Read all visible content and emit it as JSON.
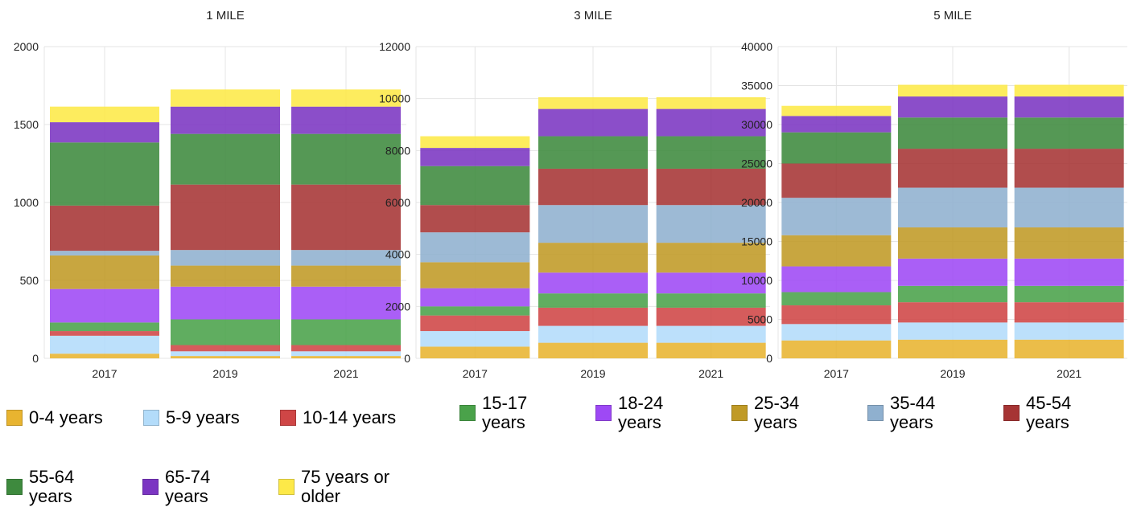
{
  "chart_data": [
    {
      "type": "bar",
      "stacked": true,
      "title": "1 MILE",
      "categories": [
        "2017",
        "2019",
        "2021"
      ],
      "ylim": [
        0,
        2000
      ],
      "yticks": [
        "0",
        "500",
        "1000",
        "1500",
        "2000"
      ],
      "grid": true,
      "series": [
        {
          "name": "0-4 years",
          "values": [
            30,
            15,
            15
          ]
        },
        {
          "name": "5-9 years",
          "values": [
            115,
            30,
            30
          ]
        },
        {
          "name": "10-14 years",
          "values": [
            30,
            40,
            40
          ]
        },
        {
          "name": "15-17 years",
          "values": [
            55,
            165,
            165
          ]
        },
        {
          "name": "18-24 years",
          "values": [
            215,
            210,
            210
          ]
        },
        {
          "name": "25-34 years",
          "values": [
            215,
            135,
            135
          ]
        },
        {
          "name": "35-44 years",
          "values": [
            30,
            100,
            100
          ]
        },
        {
          "name": "45-54 years",
          "values": [
            290,
            420,
            420
          ]
        },
        {
          "name": "55-64 years",
          "values": [
            405,
            325,
            325
          ]
        },
        {
          "name": "65-74 years",
          "values": [
            130,
            175,
            175
          ]
        },
        {
          "name": "75 years or older",
          "values": [
            100,
            110,
            110
          ]
        }
      ]
    },
    {
      "type": "bar",
      "stacked": true,
      "title": "3 MILE",
      "categories": [
        "2017",
        "2019",
        "2021"
      ],
      "ylim": [
        0,
        12000
      ],
      "yticks": [
        "0",
        "2000",
        "4000",
        "6000",
        "8000",
        "10000",
        "12000"
      ],
      "grid": true,
      "series": [
        {
          "name": "0-4 years",
          "values": [
            450,
            600,
            600
          ]
        },
        {
          "name": "5-9 years",
          "values": [
            600,
            650,
            650
          ]
        },
        {
          "name": "10-14 years",
          "values": [
            600,
            700,
            700
          ]
        },
        {
          "name": "15-17 years",
          "values": [
            350,
            550,
            550
          ]
        },
        {
          "name": "18-24 years",
          "values": [
            700,
            800,
            800
          ]
        },
        {
          "name": "25-34 years",
          "values": [
            1000,
            1150,
            1150
          ]
        },
        {
          "name": "35-44 years",
          "values": [
            1150,
            1450,
            1450
          ]
        },
        {
          "name": "45-54 years",
          "values": [
            1050,
            1400,
            1400
          ]
        },
        {
          "name": "55-64 years",
          "values": [
            1500,
            1250,
            1250
          ]
        },
        {
          "name": "65-74 years",
          "values": [
            700,
            1050,
            1050
          ]
        },
        {
          "name": "75 years or older",
          "values": [
            450,
            450,
            450
          ]
        }
      ]
    },
    {
      "type": "bar",
      "stacked": true,
      "title": "5 MILE",
      "categories": [
        "2017",
        "2019",
        "2021"
      ],
      "ylim": [
        0,
        40000
      ],
      "yticks": [
        "0",
        "5000",
        "10000",
        "15000",
        "20000",
        "25000",
        "30000",
        "35000",
        "40000"
      ],
      "grid": true,
      "series": [
        {
          "name": "0-4 years",
          "values": [
            2300,
            2400,
            2400
          ]
        },
        {
          "name": "5-9 years",
          "values": [
            2100,
            2200,
            2200
          ]
        },
        {
          "name": "10-14 years",
          "values": [
            2400,
            2600,
            2600
          ]
        },
        {
          "name": "15-17 years",
          "values": [
            1700,
            2100,
            2100
          ]
        },
        {
          "name": "18-24 years",
          "values": [
            3300,
            3500,
            3500
          ]
        },
        {
          "name": "25-34 years",
          "values": [
            4000,
            4000,
            4000
          ]
        },
        {
          "name": "35-44 years",
          "values": [
            4800,
            5100,
            5100
          ]
        },
        {
          "name": "45-54 years",
          "values": [
            4400,
            5000,
            5000
          ]
        },
        {
          "name": "55-64 years",
          "values": [
            4000,
            4000,
            4000
          ]
        },
        {
          "name": "65-74 years",
          "values": [
            2100,
            2700,
            2700
          ]
        },
        {
          "name": "75 years or older",
          "values": [
            1300,
            1500,
            1500
          ]
        }
      ]
    }
  ],
  "colors": {
    "0-4 years": "#e8b430",
    "5-9 years": "#b3dcfa",
    "10-14 years": "#cf4646",
    "15-17 years": "#4aa24a",
    "18-24 years": "#9e49f5",
    "25-34 years": "#c09a26",
    "35-44 years": "#8fb0cf",
    "45-54 years": "#a63434",
    "55-64 years": "#3e8a3e",
    "65-74 years": "#7b35c2",
    "75 years or older": "#fde948"
  },
  "legend": {
    "placement": "bottom",
    "items": [
      {
        "label": "0-4 years"
      },
      {
        "label": "5-9 years"
      },
      {
        "label": "10-14 years"
      },
      {
        "label": "15-17 years"
      },
      {
        "label": "18-24 years"
      },
      {
        "label": "25-34 years"
      },
      {
        "label": "35-44 years"
      },
      {
        "label": "45-54 years"
      },
      {
        "label": "55-64 years"
      },
      {
        "label": "65-74 years"
      },
      {
        "label": "75 years or older"
      }
    ]
  }
}
